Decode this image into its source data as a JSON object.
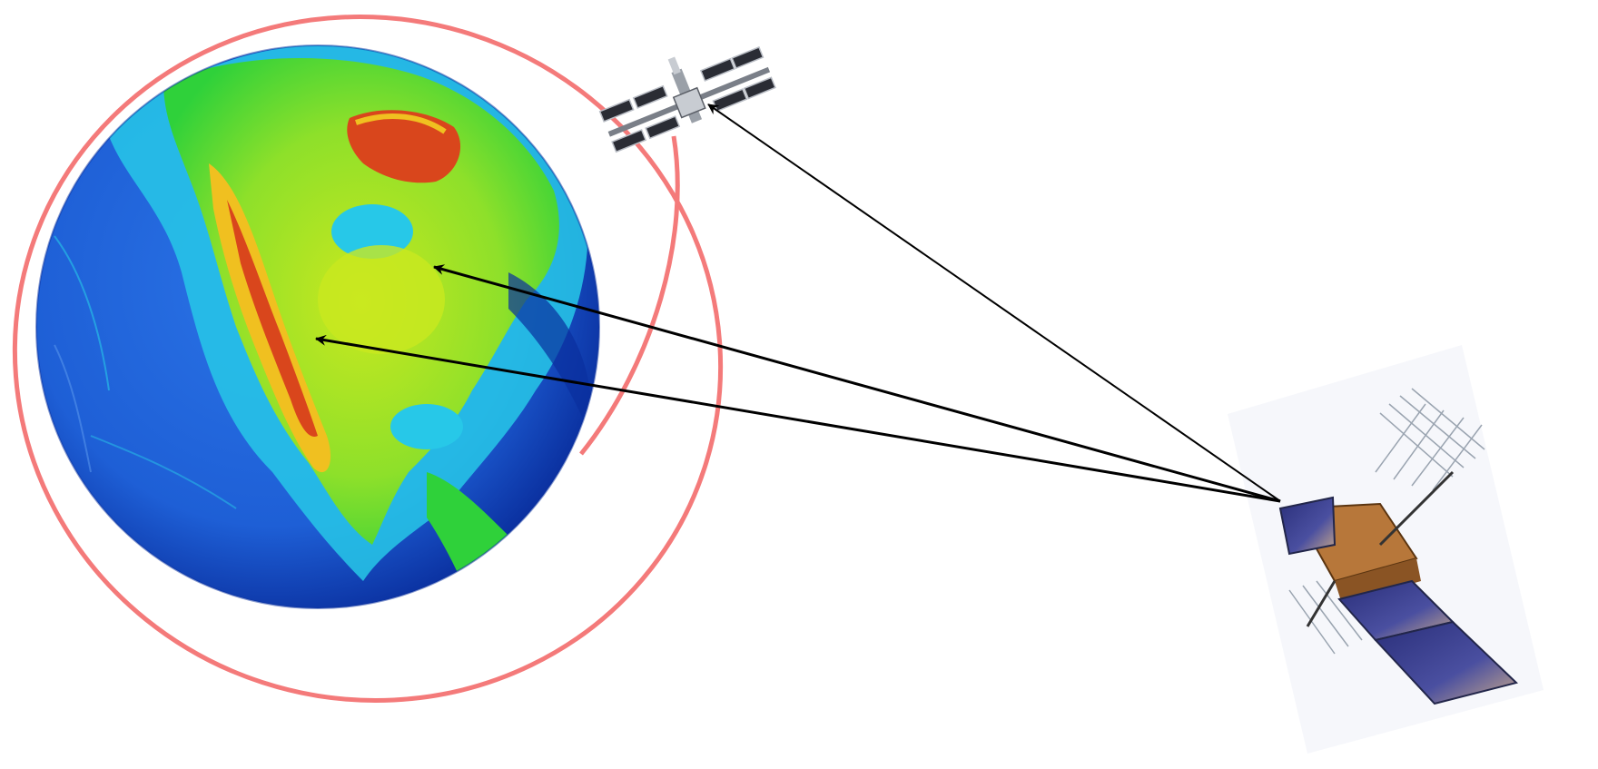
{
  "diagram": {
    "orbit": {
      "color": "#f47a7a"
    },
    "earth": {
      "colors": {
        "deep_ocean": "#0a2f9e",
        "ocean": "#1e5fd6",
        "shelf": "#27c8e8",
        "lowland": "#2fd13a",
        "plain": "#c9e81f",
        "highland": "#f0c020",
        "mountain": "#d9461c"
      }
    },
    "space_station": {
      "label": ""
    },
    "gps_satellite": {
      "label": ""
    },
    "signal_lines": [
      {
        "from": "gps_satellite",
        "to": "space_station"
      },
      {
        "from": "gps_satellite",
        "to": "earth_point_east"
      },
      {
        "from": "gps_satellite",
        "to": "earth_point_west"
      }
    ],
    "arrow_color": "#000000"
  }
}
